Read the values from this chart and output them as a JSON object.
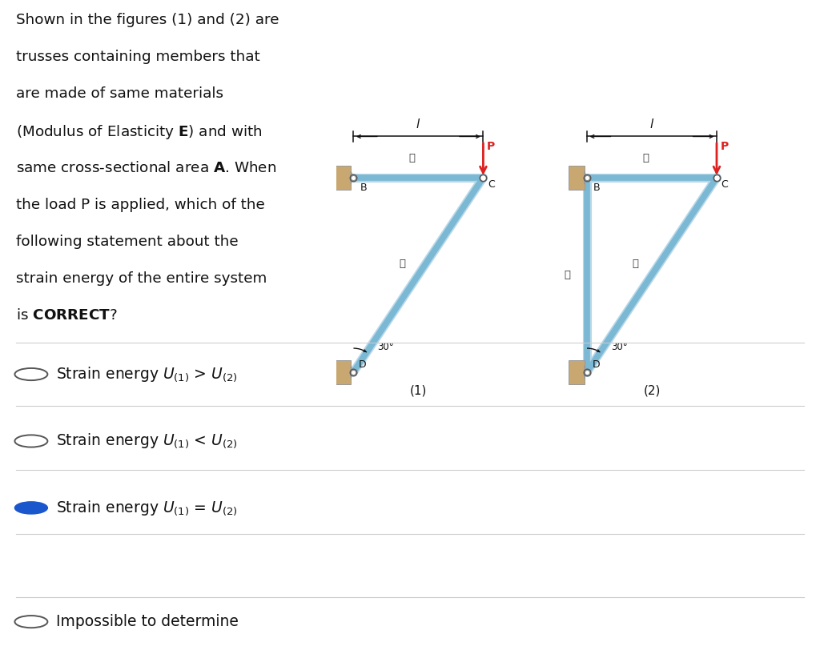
{
  "bg_color": "#ffffff",
  "member_light": "#b8d8ea",
  "member_dark": "#7ab8d4",
  "member_lw_outer": 8.0,
  "member_lw_inner": 5.5,
  "support_color": "#c8a870",
  "support_edge": "#999999",
  "arrow_color": "#dd2020",
  "dim_color": "#111111",
  "text_color": "#111111",
  "joint_color": "#ffffff",
  "joint_edge": "#555555",
  "question_lines": [
    "Shown in the figures (1) and (2) are",
    "trusses containing members that",
    "are made of same materials",
    "(Modulus of Elasticity $\\mathbf{E}$) and with",
    "same cross-sectional area $\\mathbf{A}$. When",
    "the load P is applied, which of the",
    "following statement about the",
    "strain energy of the entire system",
    "is $\\mathbf{CORRECT}$?"
  ],
  "option_texts": [
    "Strain energy $U_{(1)}$ > $U_{(2)}$",
    "Strain energy $U_{(1)}$ < $U_{(2)}$",
    "Strain energy $U_{(1)}$ = $U_{(2)}$",
    "Impossible to determine"
  ],
  "option_selected": [
    false,
    false,
    true,
    false
  ],
  "selected_color": "#1a56cc",
  "unselected_edge": "#555555"
}
